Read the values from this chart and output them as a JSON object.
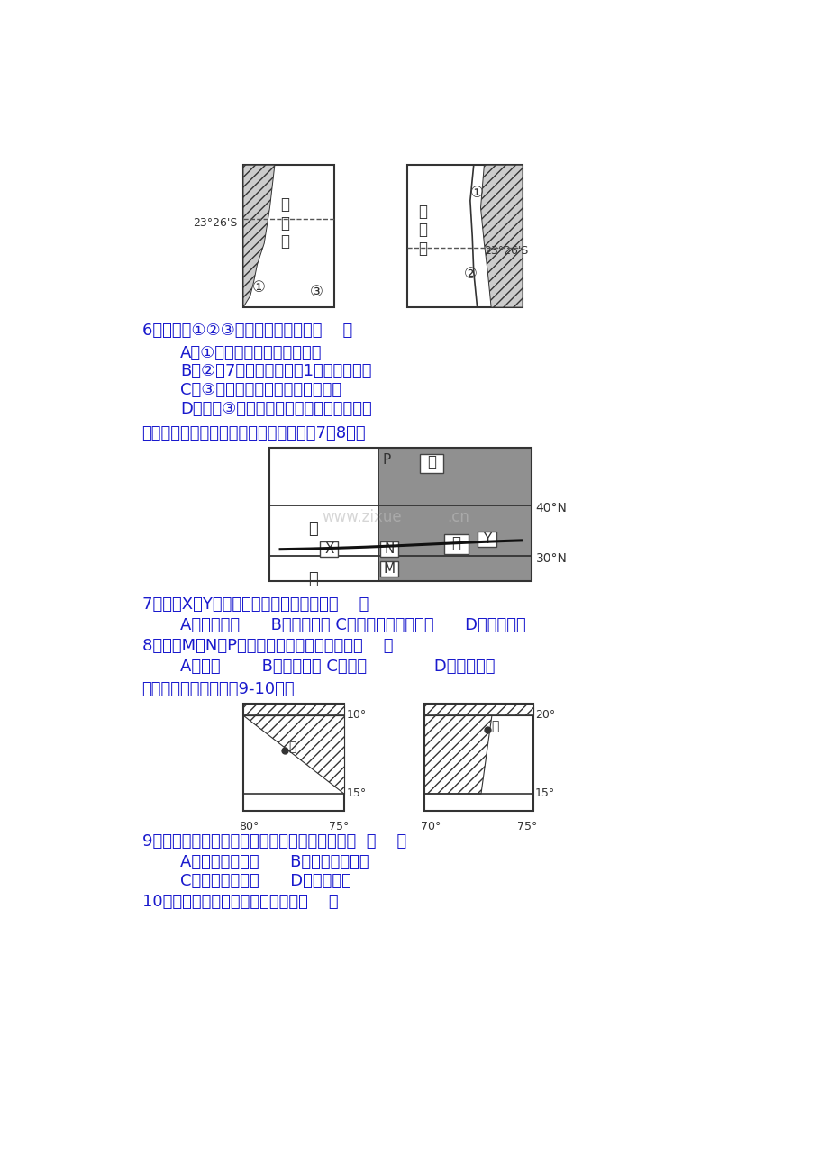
{
  "bg_color": "#ffffff",
  "text_color": "#1a1acd",
  "diagram_color": "#333333",
  "title_intro": "下图为海陆某月等温线分布图，读图回答7～8题。",
  "q6": "6、对图中①②③三地叙述错误的是（    ）",
  "q6a": "A．①地气候的形成与地形有关",
  "q6b": "B．②地7月份炎热干燥，1月份温和多雨",
  "q6c": "C．③地气候类型为温带海洋性气候",
  "q6d": "D．影响③地气候类型的主要因素是西风带",
  "q7": "7、造成X、Y两地气温差异的主要因素是（    ）",
  "q7opts": "A．纬度位置      B．人类活动 C．海陆热力性质差异      D．大气环流",
  "q8": "8、造成M、N、P三地降水差异的主导因素是（    ）",
  "q8opts": "A．纬度        B．大气环流 C．地形             D．海陆位置",
  "intro2": "读两区域示意图，回答9-10题。",
  "q9text": "9、飞机从乙地沿着最近距离飞往甲地，其方向是  （    ）",
  "q9a": "A．由西北向东南      B．由西南向东北",
  "q9b": "C．由东北向西南      D．由东向西",
  "q10": "10、甲、乙两地附近的气候状况是（    ）"
}
